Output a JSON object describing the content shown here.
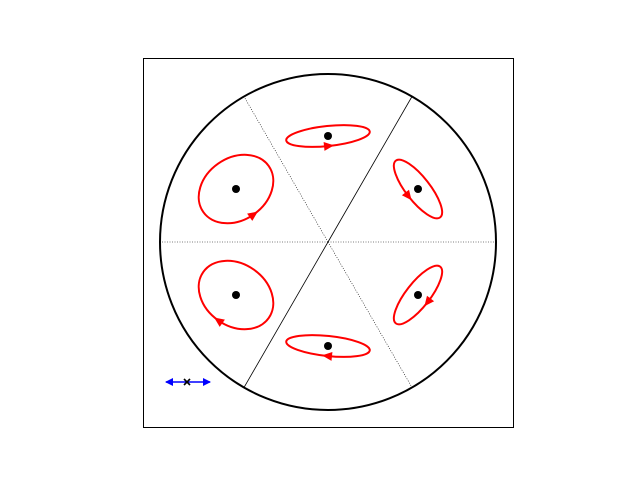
{
  "diagram": {
    "colors": {
      "frame": "#000000",
      "circle": "#000000",
      "solid_divider": "#000000",
      "dotted_divider": "#000000",
      "ellipse": "#ff0000",
      "dot": "#000000",
      "polarization_arrow": "#0000ff",
      "polarization_marker": "#000000"
    },
    "sector_dividers": [
      {
        "angle_deg": 0,
        "style": "dotted"
      },
      {
        "angle_deg": 60,
        "style": "solid"
      },
      {
        "angle_deg": 120,
        "style": "dotted"
      },
      {
        "angle_deg": 180,
        "style": "dotted"
      },
      {
        "angle_deg": 240,
        "style": "solid"
      },
      {
        "angle_deg": 300,
        "style": "dotted"
      }
    ],
    "ellipses": [
      {
        "id": "upper-center",
        "semi_major": 42,
        "semi_minor": 10,
        "tilt_deg": 6,
        "direction": "ccw"
      },
      {
        "id": "upper-right",
        "semi_major": 36,
        "semi_minor": 12,
        "tilt_deg": -52,
        "direction": "ccw"
      },
      {
        "id": "lower-right",
        "semi_major": 36,
        "semi_minor": 12,
        "tilt_deg": 52,
        "direction": "cw"
      },
      {
        "id": "lower-center",
        "semi_major": 42,
        "semi_minor": 10,
        "tilt_deg": -6,
        "direction": "cw"
      },
      {
        "id": "lower-left",
        "semi_major": 40,
        "semi_minor": 31,
        "tilt_deg": -35,
        "direction": "cw"
      },
      {
        "id": "upper-left",
        "semi_major": 40,
        "semi_minor": 31,
        "tilt_deg": 35,
        "direction": "ccw"
      }
    ],
    "legend": {
      "symbol": "polarization-double-arrow",
      "orientation": "horizontal"
    }
  }
}
